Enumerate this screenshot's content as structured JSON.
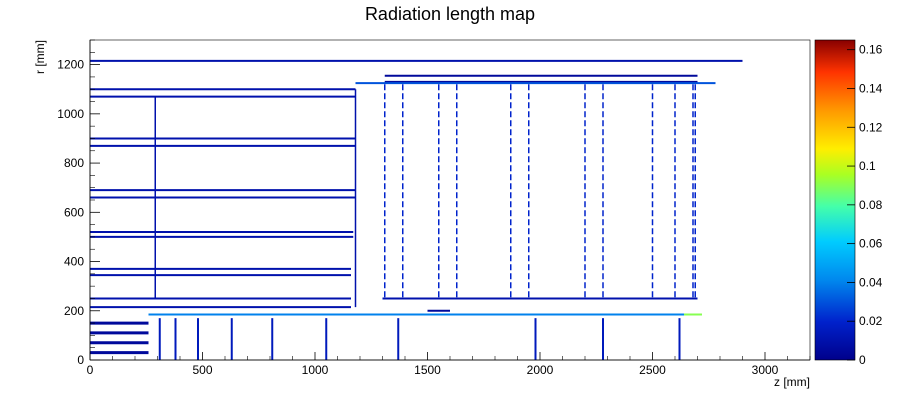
{
  "chart_data": {
    "type": "heatmap",
    "title": "Radiation length map",
    "xlabel": "z [mm]",
    "ylabel": "r [mm]",
    "xlim": [
      0,
      3200
    ],
    "ylim": [
      0,
      1300
    ],
    "x_ticks": [
      0,
      500,
      1000,
      1500,
      2000,
      2500,
      3000
    ],
    "y_ticks": [
      0,
      200,
      400,
      600,
      800,
      1000,
      1200
    ],
    "colorbar": {
      "range": [
        0,
        0.165
      ],
      "ticks": [
        0,
        0.02,
        0.04,
        0.06,
        0.08,
        0.1,
        0.12,
        0.14,
        0.16
      ],
      "tick_labels": [
        "0",
        "0.02",
        "0.04",
        "0.06",
        "0.08",
        "0.1",
        "0.12",
        "0.14",
        "0.16"
      ],
      "colormap": "rainbow"
    },
    "structures": [
      {
        "name": "outer line",
        "z": [
          0,
          2900
        ],
        "r": [
          1215,
          1215
        ],
        "value": 0.01
      },
      {
        "name": "endcap top lines",
        "z": [
          1310,
          2700
        ],
        "r": [
          1155,
          1155
        ],
        "value": 0.005
      },
      {
        "name": "endcap top lines 2",
        "z": [
          1310,
          2700
        ],
        "r": [
          1130,
          1130
        ],
        "value": 0.005
      },
      {
        "name": "endcap outer boundary",
        "z": [
          1180,
          2780
        ],
        "r": [
          1125,
          1125
        ],
        "value": 0.03
      },
      {
        "name": "barrel layer 1100",
        "z": [
          0,
          1180
        ],
        "r": [
          1100,
          1100
        ],
        "value": 0.01
      },
      {
        "name": "barrel layer 1070",
        "z": [
          0,
          1180
        ],
        "r": [
          1070,
          1070
        ],
        "value": 0.01
      },
      {
        "name": "barrel layer 900",
        "z": [
          0,
          1180
        ],
        "r": [
          900,
          900
        ],
        "value": 0.01
      },
      {
        "name": "barrel layer 870",
        "z": [
          0,
          1180
        ],
        "r": [
          870,
          870
        ],
        "value": 0.01
      },
      {
        "name": "barrel layer 690",
        "z": [
          0,
          1180
        ],
        "r": [
          690,
          690
        ],
        "value": 0.01
      },
      {
        "name": "barrel layer 660",
        "z": [
          0,
          1180
        ],
        "r": [
          660,
          660
        ],
        "value": 0.01
      },
      {
        "name": "barrel layer 520",
        "z": [
          0,
          1170
        ],
        "r": [
          520,
          520
        ],
        "value": 0.01
      },
      {
        "name": "barrel layer 500",
        "z": [
          0,
          1170
        ],
        "r": [
          500,
          500
        ],
        "value": 0.01
      },
      {
        "name": "barrel layer 370",
        "z": [
          0,
          1160
        ],
        "r": [
          370,
          370
        ],
        "value": 0.01
      },
      {
        "name": "barrel layer 345",
        "z": [
          0,
          1160
        ],
        "r": [
          345,
          345
        ],
        "value": 0.01
      },
      {
        "name": "barrel layer 250",
        "z": [
          0,
          1160
        ],
        "r": [
          250,
          250
        ],
        "value": 0.01
      },
      {
        "name": "barrel layer 215",
        "z": [
          0,
          1160
        ],
        "r": [
          215,
          215
        ],
        "value": 0.01
      },
      {
        "name": "beam support",
        "z": [
          260,
          2640
        ],
        "r": [
          185,
          185
        ],
        "value": 0.04
      },
      {
        "name": "beam support end",
        "z": [
          2640,
          2720
        ],
        "r": [
          185,
          185
        ],
        "value": 0.09
      },
      {
        "name": "endcap bottom",
        "z": [
          1300,
          2700
        ],
        "r": [
          250,
          250
        ],
        "value": 0.01
      },
      {
        "name": "small bar",
        "z": [
          1500,
          1600
        ],
        "r": [
          200,
          200
        ],
        "value": 0.005
      }
    ],
    "inner_disks_z": [
      310,
      380,
      480,
      630,
      810,
      1050,
      1370,
      1980,
      2280,
      2620
    ],
    "endcap_disks_z": [
      1310,
      1390,
      1550,
      1630,
      1870,
      1950,
      2200,
      2280,
      2500,
      2600,
      2680,
      2690
    ]
  }
}
